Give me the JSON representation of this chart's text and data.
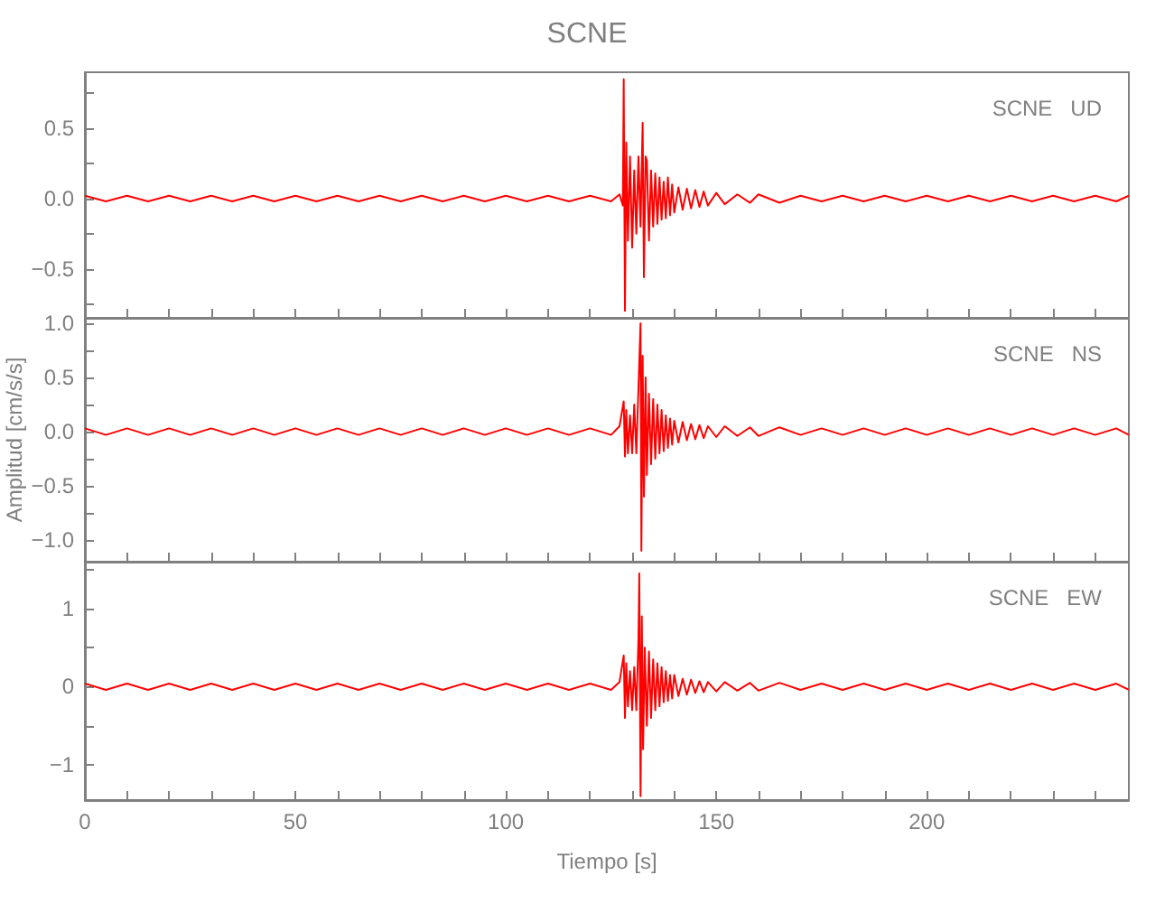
{
  "chart_data": [
    {
      "type": "line",
      "title": "SCNE",
      "xlim": [
        0,
        248
      ],
      "ylim": [
        -0.85,
        0.9
      ],
      "tick_labels": "y",
      "grid": false,
      "xticks": [
        0,
        {
          "value": 10,
          "label": null
        },
        {
          "value": 20,
          "label": null
        },
        {
          "value": 30,
          "label": null
        },
        {
          "value": 40,
          "label": null
        },
        50,
        {
          "value": 60,
          "label": null
        },
        {
          "value": 70,
          "label": null
        },
        {
          "value": 80,
          "label": null
        },
        {
          "value": 90,
          "label": null
        },
        100,
        {
          "value": 110,
          "label": null
        },
        {
          "value": 120,
          "label": null
        },
        {
          "value": 130,
          "label": null
        },
        {
          "value": 140,
          "label": null
        },
        150,
        {
          "value": 160,
          "label": null
        },
        {
          "value": 170,
          "label": null
        },
        {
          "value": 180,
          "label": null
        },
        {
          "value": 190,
          "label": null
        },
        200,
        {
          "value": 210,
          "label": null
        },
        {
          "value": 220,
          "label": null
        },
        {
          "value": 230,
          "label": null
        },
        {
          "value": 240,
          "label": null
        }
      ],
      "yticks": [
        {
          "value": -0.75,
          "label": null
        },
        {
          "value": -0.5,
          "label": "−0.5"
        },
        {
          "value": -0.25,
          "label": null
        },
        {
          "value": 0,
          "label": "0.0"
        },
        {
          "value": 0.25,
          "label": null
        },
        {
          "value": 0.5,
          "label": "0.5"
        },
        {
          "value": 0.75,
          "label": null
        }
      ],
      "series": [
        {
          "name": "SCNE   UD",
          "color": "#ff0000",
          "x": [
            0,
            5,
            10,
            15,
            20,
            25,
            30,
            35,
            40,
            45,
            50,
            55,
            60,
            65,
            70,
            75,
            80,
            85,
            90,
            95,
            100,
            105,
            110,
            115,
            120,
            125,
            127,
            127.8,
            128,
            128.3,
            128.6,
            129,
            129.5,
            130,
            130.5,
            131,
            131.5,
            132,
            132.5,
            132.8,
            133.2,
            133.5,
            134,
            134.5,
            135,
            135.5,
            136,
            136.5,
            137,
            137.5,
            138,
            138.5,
            139,
            139.5,
            140,
            141,
            142,
            143,
            144,
            145,
            146,
            147,
            148,
            150,
            152,
            155,
            158,
            160,
            165,
            170,
            175,
            180,
            185,
            190,
            195,
            200,
            205,
            210,
            215,
            220,
            225,
            230,
            235,
            240,
            245,
            248
          ],
          "values": [
            0.02,
            -0.02,
            0.02,
            -0.02,
            0.02,
            -0.02,
            0.02,
            -0.02,
            0.02,
            -0.02,
            0.02,
            -0.02,
            0.02,
            -0.02,
            0.02,
            -0.02,
            0.02,
            -0.02,
            0.02,
            -0.02,
            0.02,
            -0.02,
            0.02,
            -0.02,
            0.02,
            -0.02,
            0.03,
            -0.05,
            0.85,
            -0.8,
            0.4,
            -0.3,
            0.3,
            -0.35,
            0.2,
            -0.25,
            0.3,
            -0.2,
            0.54,
            -0.56,
            0.3,
            0.27,
            -0.3,
            0.2,
            -0.2,
            0.18,
            -0.18,
            0.15,
            -0.15,
            0.12,
            -0.14,
            0.15,
            -0.12,
            0.1,
            -0.1,
            0.08,
            -0.08,
            0.07,
            -0.07,
            0.06,
            -0.06,
            0.05,
            -0.05,
            0.04,
            -0.04,
            0.03,
            -0.03,
            0.03,
            -0.03,
            0.02,
            -0.02,
            0.02,
            -0.02,
            0.02,
            -0.02,
            0.02,
            -0.02,
            0.02,
            -0.02,
            0.02,
            -0.02,
            0.02,
            -0.02,
            0.02,
            -0.02,
            0.02
          ]
        }
      ]
    },
    {
      "type": "line",
      "ylabel": "Amplitud [cm/s/s]",
      "xlim": [
        0,
        248
      ],
      "ylim": [
        -1.2,
        1.05
      ],
      "tick_labels": "y",
      "grid": false,
      "xticks": [
        0,
        {
          "value": 10,
          "label": null
        },
        {
          "value": 20,
          "label": null
        },
        {
          "value": 30,
          "label": null
        },
        {
          "value": 40,
          "label": null
        },
        50,
        {
          "value": 60,
          "label": null
        },
        {
          "value": 70,
          "label": null
        },
        {
          "value": 80,
          "label": null
        },
        {
          "value": 90,
          "label": null
        },
        100,
        {
          "value": 110,
          "label": null
        },
        {
          "value": 120,
          "label": null
        },
        {
          "value": 130,
          "label": null
        },
        {
          "value": 140,
          "label": null
        },
        150,
        {
          "value": 160,
          "label": null
        },
        {
          "value": 170,
          "label": null
        },
        {
          "value": 180,
          "label": null
        },
        {
          "value": 190,
          "label": null
        },
        200,
        {
          "value": 210,
          "label": null
        },
        {
          "value": 220,
          "label": null
        },
        {
          "value": 230,
          "label": null
        },
        {
          "value": 240,
          "label": null
        }
      ],
      "yticks": [
        {
          "value": -1,
          "label": "−1.0"
        },
        {
          "value": -0.75,
          "label": null
        },
        {
          "value": -0.5,
          "label": "−0.5"
        },
        {
          "value": -0.25,
          "label": null
        },
        {
          "value": 0,
          "label": "0.0"
        },
        {
          "value": 0.25,
          "label": null
        },
        {
          "value": 0.5,
          "label": "0.5"
        },
        {
          "value": 0.75,
          "label": null
        },
        {
          "value": 1,
          "label": "1.0"
        }
      ],
      "series": [
        {
          "name": "SCNE   NS",
          "color": "#ff0000",
          "x": [
            0,
            5,
            10,
            15,
            20,
            25,
            30,
            35,
            40,
            45,
            50,
            55,
            60,
            65,
            70,
            75,
            80,
            85,
            90,
            95,
            100,
            105,
            110,
            115,
            120,
            125,
            127,
            128,
            128.3,
            128.6,
            129,
            129.5,
            130,
            130.5,
            131,
            131.5,
            132,
            132.2,
            132.5,
            132.8,
            133.2,
            133.5,
            134,
            134.5,
            135,
            135.5,
            136,
            136.5,
            137,
            137.5,
            138,
            138.5,
            139,
            139.5,
            140,
            141,
            142,
            143,
            144,
            145,
            146,
            147,
            148,
            150,
            152,
            155,
            158,
            160,
            165,
            170,
            175,
            180,
            185,
            190,
            195,
            200,
            205,
            210,
            215,
            220,
            225,
            230,
            235,
            240,
            245,
            248
          ],
          "values": [
            0.03,
            -0.03,
            0.03,
            -0.03,
            0.03,
            -0.03,
            0.03,
            -0.03,
            0.03,
            -0.03,
            0.03,
            -0.03,
            0.03,
            -0.03,
            0.03,
            -0.03,
            0.03,
            -0.03,
            0.03,
            -0.03,
            0.03,
            -0.03,
            0.03,
            -0.03,
            0.03,
            -0.03,
            0.05,
            0.28,
            -0.23,
            0.2,
            -0.2,
            0.15,
            -0.2,
            0.25,
            -0.2,
            0.4,
            1.0,
            -1.1,
            0.7,
            -0.6,
            0.5,
            -0.4,
            0.35,
            -0.3,
            0.3,
            -0.25,
            0.25,
            -0.2,
            0.2,
            -0.18,
            0.15,
            -0.15,
            0.12,
            -0.12,
            0.1,
            -0.1,
            0.09,
            -0.08,
            0.07,
            -0.07,
            0.06,
            -0.06,
            0.05,
            -0.05,
            0.05,
            -0.04,
            0.04,
            -0.04,
            0.04,
            -0.03,
            0.03,
            -0.03,
            0.03,
            -0.03,
            0.03,
            -0.03,
            0.03,
            -0.03,
            0.03,
            -0.03,
            0.03,
            -0.03,
            0.03,
            -0.03,
            0.03,
            -0.03
          ]
        }
      ]
    },
    {
      "type": "line",
      "xlabel": "Tiempo [s]",
      "xlim": [
        0,
        248
      ],
      "ylim": [
        -1.45,
        1.6
      ],
      "grid": false,
      "xticks": [
        0,
        {
          "value": 10,
          "label": null
        },
        {
          "value": 20,
          "label": null
        },
        {
          "value": 30,
          "label": null
        },
        {
          "value": 40,
          "label": null
        },
        50,
        {
          "value": 60,
          "label": null
        },
        {
          "value": 70,
          "label": null
        },
        {
          "value": 80,
          "label": null
        },
        {
          "value": 90,
          "label": null
        },
        100,
        {
          "value": 110,
          "label": null
        },
        {
          "value": 120,
          "label": null
        },
        {
          "value": 130,
          "label": null
        },
        {
          "value": 140,
          "label": null
        },
        150,
        {
          "value": 160,
          "label": null
        },
        {
          "value": 170,
          "label": null
        },
        {
          "value": 180,
          "label": null
        },
        {
          "value": 190,
          "label": null
        },
        200,
        {
          "value": 210,
          "label": null
        },
        {
          "value": 220,
          "label": null
        },
        {
          "value": 230,
          "label": null
        },
        {
          "value": 240,
          "label": null
        }
      ],
      "yticks": [
        {
          "value": -1,
          "label": "−1"
        },
        {
          "value": -0.5,
          "label": null
        },
        0,
        {
          "value": 0.5,
          "label": null
        },
        1,
        {
          "value": 1.5,
          "label": null
        }
      ],
      "series": [
        {
          "name": "SCNE   EW",
          "color": "#ff0000",
          "x": [
            0,
            5,
            10,
            15,
            20,
            25,
            30,
            35,
            40,
            45,
            50,
            55,
            60,
            65,
            70,
            75,
            80,
            85,
            90,
            95,
            100,
            105,
            110,
            115,
            120,
            125,
            127,
            128,
            128.3,
            128.6,
            129,
            129.5,
            130,
            130.5,
            131,
            131.5,
            131.7,
            132,
            132.3,
            132.6,
            133,
            133.5,
            134,
            134.5,
            135,
            135.5,
            136,
            136.5,
            137,
            137.5,
            138,
            138.5,
            139,
            139.5,
            140,
            141,
            142,
            143,
            144,
            145,
            146,
            147,
            148,
            150,
            152,
            155,
            158,
            160,
            165,
            170,
            175,
            180,
            185,
            190,
            195,
            200,
            205,
            210,
            215,
            220,
            225,
            230,
            235,
            240,
            245,
            248
          ],
          "values": [
            0.04,
            -0.04,
            0.04,
            -0.04,
            0.04,
            -0.04,
            0.04,
            -0.04,
            0.04,
            -0.04,
            0.04,
            -0.04,
            0.04,
            -0.04,
            0.04,
            -0.04,
            0.04,
            -0.04,
            0.04,
            -0.04,
            0.04,
            -0.04,
            0.04,
            -0.04,
            0.04,
            -0.04,
            0.06,
            0.4,
            -0.4,
            0.3,
            -0.25,
            0.2,
            -0.3,
            0.25,
            -0.3,
            0.6,
            1.45,
            -1.4,
            0.9,
            -0.8,
            0.5,
            -0.5,
            0.45,
            -0.4,
            0.35,
            -0.3,
            0.3,
            -0.25,
            0.25,
            -0.2,
            0.2,
            -0.18,
            0.15,
            -0.15,
            0.15,
            -0.12,
            0.1,
            -0.1,
            0.09,
            -0.08,
            0.07,
            -0.07,
            0.06,
            -0.06,
            0.06,
            -0.05,
            0.05,
            -0.05,
            0.05,
            -0.04,
            0.04,
            -0.04,
            0.04,
            -0.04,
            0.04,
            -0.04,
            0.04,
            -0.04,
            0.04,
            -0.04,
            0.04,
            -0.04,
            0.04,
            -0.04,
            0.04,
            -0.04
          ]
        }
      ]
    }
  ]
}
